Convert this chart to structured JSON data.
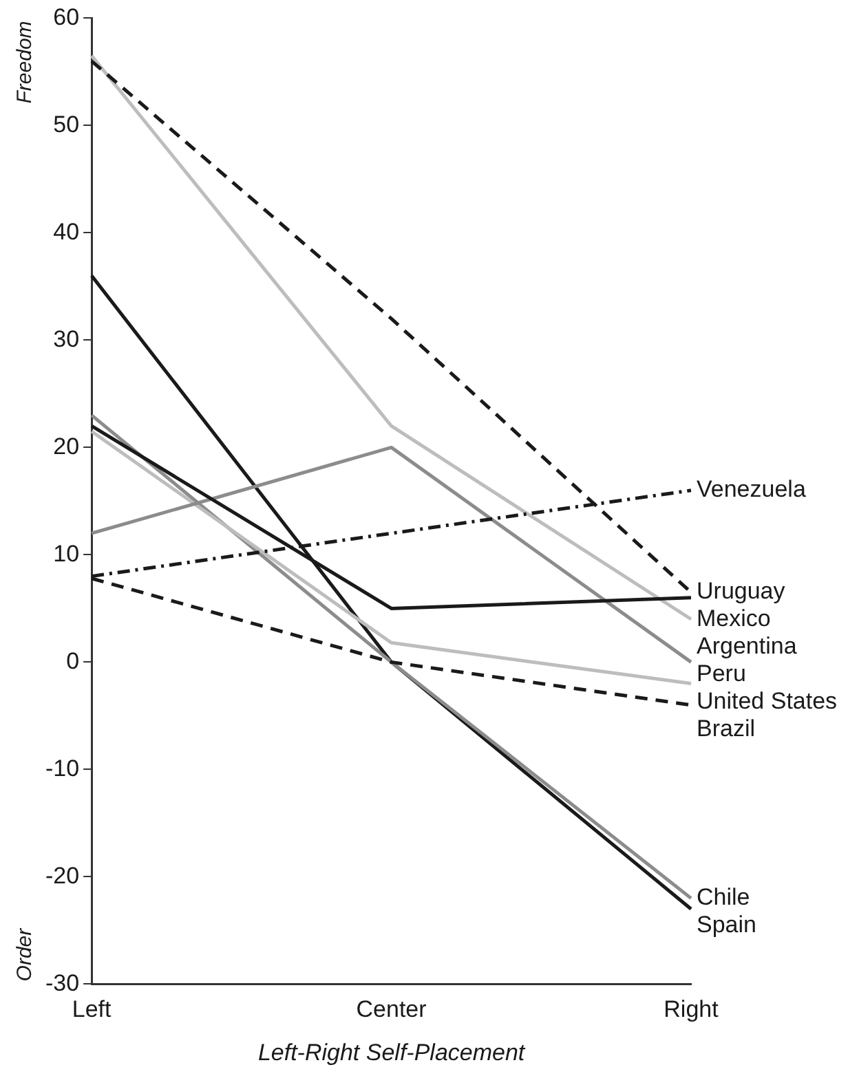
{
  "chart_data": {
    "type": "line",
    "xlabel": "Left-Right Self-Placement",
    "annotations": [
      "Freedom",
      "Order"
    ],
    "categories": [
      "Left",
      "Center",
      "Right"
    ],
    "ylim": [
      -30,
      60
    ],
    "yticks": [
      -30,
      -20,
      -10,
      0,
      10,
      20,
      30,
      40,
      50,
      60
    ],
    "grid": false,
    "legend": false,
    "marker": "none",
    "series": [
      {
        "name": "Venezuela",
        "color": "#1a1a1a",
        "line_style": "dashdot",
        "values": [
          8,
          12,
          16
        ]
      },
      {
        "name": "Uruguay",
        "color": "#1a1a1a",
        "line_style": "dashed",
        "values": [
          56,
          32,
          6.5
        ]
      },
      {
        "name": "Mexico",
        "color": "#1a1a1a",
        "line_style": "solid",
        "values": [
          22,
          5,
          6
        ]
      },
      {
        "name": "Argentina",
        "color": "#bdbdbd",
        "line_style": "solid",
        "values": [
          56.5,
          22,
          4
        ]
      },
      {
        "name": "Peru",
        "color": "#8c8c8c",
        "line_style": "solid",
        "values": [
          12,
          20,
          0
        ]
      },
      {
        "name": "United States",
        "color": "#bdbdbd",
        "line_style": "solid",
        "values": [
          21.5,
          1.8,
          -2
        ]
      },
      {
        "name": "Brazil",
        "color": "#1a1a1a",
        "line_style": "dashed",
        "values": [
          7.8,
          0,
          -4
        ]
      },
      {
        "name": "Chile",
        "color": "#8c8c8c",
        "line_style": "solid",
        "values": [
          23,
          0,
          -22
        ]
      },
      {
        "name": "Spain",
        "color": "#1a1a1a",
        "line_style": "solid",
        "values": [
          36,
          0,
          -23
        ]
      }
    ]
  }
}
